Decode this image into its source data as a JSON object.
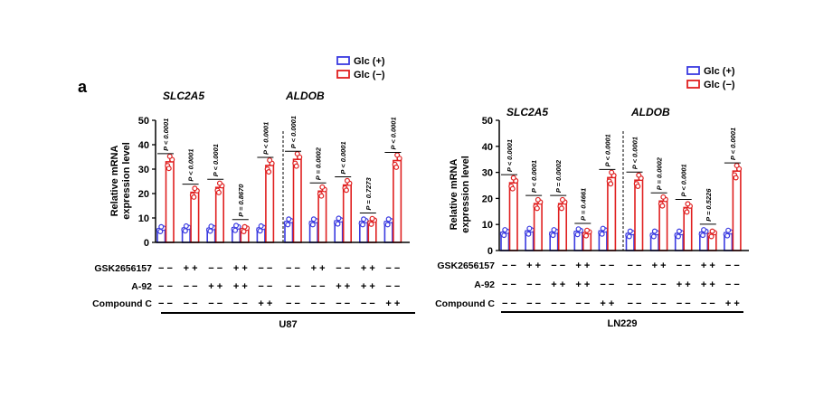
{
  "figure": {
    "panel_letter": "a",
    "colors": {
      "glc_plus": "#3a3ae0",
      "glc_minus": "#e02020"
    }
  },
  "chart_data": [
    {
      "type": "bar",
      "cell_line": "U87",
      "ylabel": "Relative mRNA\nexpression level",
      "ylim": [
        0,
        50
      ],
      "yticks": [
        0,
        10,
        20,
        30,
        40,
        50
      ],
      "genes": [
        "SLC2A5",
        "ALDOB"
      ],
      "legend": {
        "position": "top",
        "entries": [
          "Glc (+)",
          "Glc (−)"
        ]
      },
      "row_labels": [
        "GSK2656157",
        "A-92",
        "Compound C"
      ],
      "groups": [
        {
          "gene": "SLC2A5",
          "treatment": [
            "−",
            "−",
            "−"
          ],
          "glc_plus": 5.5,
          "glc_minus": 33,
          "p": "P < 0.0001"
        },
        {
          "gene": "SLC2A5",
          "treatment": [
            "+",
            "−",
            "−"
          ],
          "glc_plus": 5.8,
          "glc_minus": 20.5,
          "p": "P < 0.0001"
        },
        {
          "gene": "SLC2A5",
          "treatment": [
            "−",
            "+",
            "−"
          ],
          "glc_plus": 5.7,
          "glc_minus": 22.5,
          "p": "P < 0.0001"
        },
        {
          "gene": "SLC2A5",
          "treatment": [
            "+",
            "+",
            "−"
          ],
          "glc_plus": 6.0,
          "glc_minus": 5.5,
          "p": "P = 0.8670"
        },
        {
          "gene": "SLC2A5",
          "treatment": [
            "−",
            "−",
            "+"
          ],
          "glc_plus": 5.8,
          "glc_minus": 31.5,
          "p": "P < 0.0001"
        },
        {
          "gene": "ALDOB",
          "treatment": [
            "−",
            "−",
            "−"
          ],
          "glc_plus": 8.5,
          "glc_minus": 34,
          "p": "P < 0.0001"
        },
        {
          "gene": "ALDOB",
          "treatment": [
            "+",
            "−",
            "−"
          ],
          "glc_plus": 8.5,
          "glc_minus": 21,
          "p": "P = 0.0002"
        },
        {
          "gene": "ALDOB",
          "treatment": [
            "−",
            "+",
            "−"
          ],
          "glc_plus": 8.8,
          "glc_minus": 23.5,
          "p": "P < 0.0001"
        },
        {
          "gene": "ALDOB",
          "treatment": [
            "+",
            "+",
            "−"
          ],
          "glc_plus": 8.5,
          "glc_minus": 8.7,
          "p": "P = 0.7273"
        },
        {
          "gene": "ALDOB",
          "treatment": [
            "−",
            "−",
            "+"
          ],
          "glc_plus": 8.5,
          "glc_minus": 33.5,
          "p": "P < 0.0001"
        }
      ]
    },
    {
      "type": "bar",
      "cell_line": "LN229",
      "ylabel": "Relative mRNA\nexpression level",
      "ylim": [
        0,
        50
      ],
      "yticks": [
        0,
        10,
        20,
        30,
        40,
        50
      ],
      "genes": [
        "SLC2A5",
        "ALDOB"
      ],
      "legend": {
        "position": "top-right",
        "entries": [
          "Glc (+)",
          "Glc (−)"
        ]
      },
      "row_labels": [
        "GSK2656157",
        "A-92",
        "Compound C"
      ],
      "groups": [
        {
          "gene": "SLC2A5",
          "treatment": [
            "−",
            "−",
            "−"
          ],
          "glc_plus": 7,
          "glc_minus": 26,
          "p": "P < 0.0001"
        },
        {
          "gene": "SLC2A5",
          "treatment": [
            "+",
            "−",
            "−"
          ],
          "glc_plus": 7.5,
          "glc_minus": 18,
          "p": "P < 0.0001"
        },
        {
          "gene": "SLC2A5",
          "treatment": [
            "−",
            "+",
            "−"
          ],
          "glc_plus": 7,
          "glc_minus": 18,
          "p": "P = 0.0002"
        },
        {
          "gene": "SLC2A5",
          "treatment": [
            "+",
            "+",
            "−"
          ],
          "glc_plus": 7.3,
          "glc_minus": 6.8,
          "p": "P = 0.4661"
        },
        {
          "gene": "SLC2A5",
          "treatment": [
            "−",
            "−",
            "+"
          ],
          "glc_plus": 7.5,
          "glc_minus": 28,
          "p": "P < 0.0001"
        },
        {
          "gene": "ALDOB",
          "treatment": [
            "−",
            "−",
            "−"
          ],
          "glc_plus": 6.5,
          "glc_minus": 27,
          "p": "P < 0.0001"
        },
        {
          "gene": "ALDOB",
          "treatment": [
            "+",
            "−",
            "−"
          ],
          "glc_plus": 6.5,
          "glc_minus": 19,
          "p": "P = 0.0002"
        },
        {
          "gene": "ALDOB",
          "treatment": [
            "−",
            "+",
            "−"
          ],
          "glc_plus": 6.5,
          "glc_minus": 16.5,
          "p": "P < 0.0001"
        },
        {
          "gene": "ALDOB",
          "treatment": [
            "+",
            "+",
            "−"
          ],
          "glc_plus": 7,
          "glc_minus": 6.5,
          "p": "P = 0.5226"
        },
        {
          "gene": "ALDOB",
          "treatment": [
            "−",
            "−",
            "+"
          ],
          "glc_plus": 6.8,
          "glc_minus": 30.5,
          "p": "P < 0.0001"
        }
      ]
    }
  ]
}
